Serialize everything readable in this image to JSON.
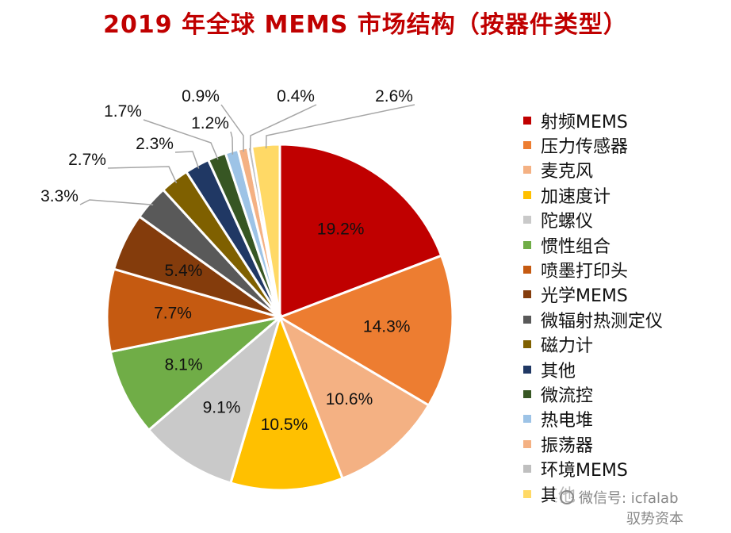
{
  "chart_data": {
    "type": "pie",
    "title": "2019 年全球 MEMS 市场结构（按器件类型）",
    "slices": [
      {
        "label": "射频MEMS",
        "value": 19.2,
        "display": "19.2%",
        "color": "#c00000"
      },
      {
        "label": "压力传感器",
        "value": 14.3,
        "display": "14.3%",
        "color": "#ed7d31"
      },
      {
        "label": "麦克风",
        "value": 10.6,
        "display": "10.6%",
        "color": "#f4b183"
      },
      {
        "label": "加速度计",
        "value": 10.5,
        "display": "10.5%",
        "color": "#ffc000"
      },
      {
        "label": "陀螺仪",
        "value": 9.1,
        "display": "9.1%",
        "color": "#c9c9c9"
      },
      {
        "label": "惯性组合",
        "value": 8.1,
        "display": "8.1%",
        "color": "#70ad47"
      },
      {
        "label": "喷墨打印头",
        "value": 7.7,
        "display": "7.7%",
        "color": "#c55a11"
      },
      {
        "label": "光学MEMS",
        "value": 5.4,
        "display": "5.4%",
        "color": "#843c0c"
      },
      {
        "label": "微辐射热测定仪",
        "value": 3.3,
        "display": "3.3%",
        "color": "#595959"
      },
      {
        "label": "磁力计",
        "value": 2.7,
        "display": "2.7%",
        "color": "#7f6000"
      },
      {
        "label": "其他",
        "value": 2.3,
        "display": "2.3%",
        "color": "#203864"
      },
      {
        "label": "微流控",
        "value": 1.7,
        "display": "1.7%",
        "color": "#375623"
      },
      {
        "label": "热电堆",
        "value": 1.2,
        "display": "1.2%",
        "color": "#9dc3e6"
      },
      {
        "label": "振荡器",
        "value": 0.9,
        "display": "0.9%",
        "color": "#f4b183"
      },
      {
        "label": "环境MEMS",
        "value": 0.4,
        "display": "0.4%",
        "color": "#bfbfbf"
      },
      {
        "label": "其他",
        "value": 2.6,
        "display": "2.6%",
        "color": "#ffd966"
      }
    ],
    "legend_position": "right"
  },
  "watermark": {
    "line1": "微信号: icfalab",
    "line2": "驭势资本"
  }
}
